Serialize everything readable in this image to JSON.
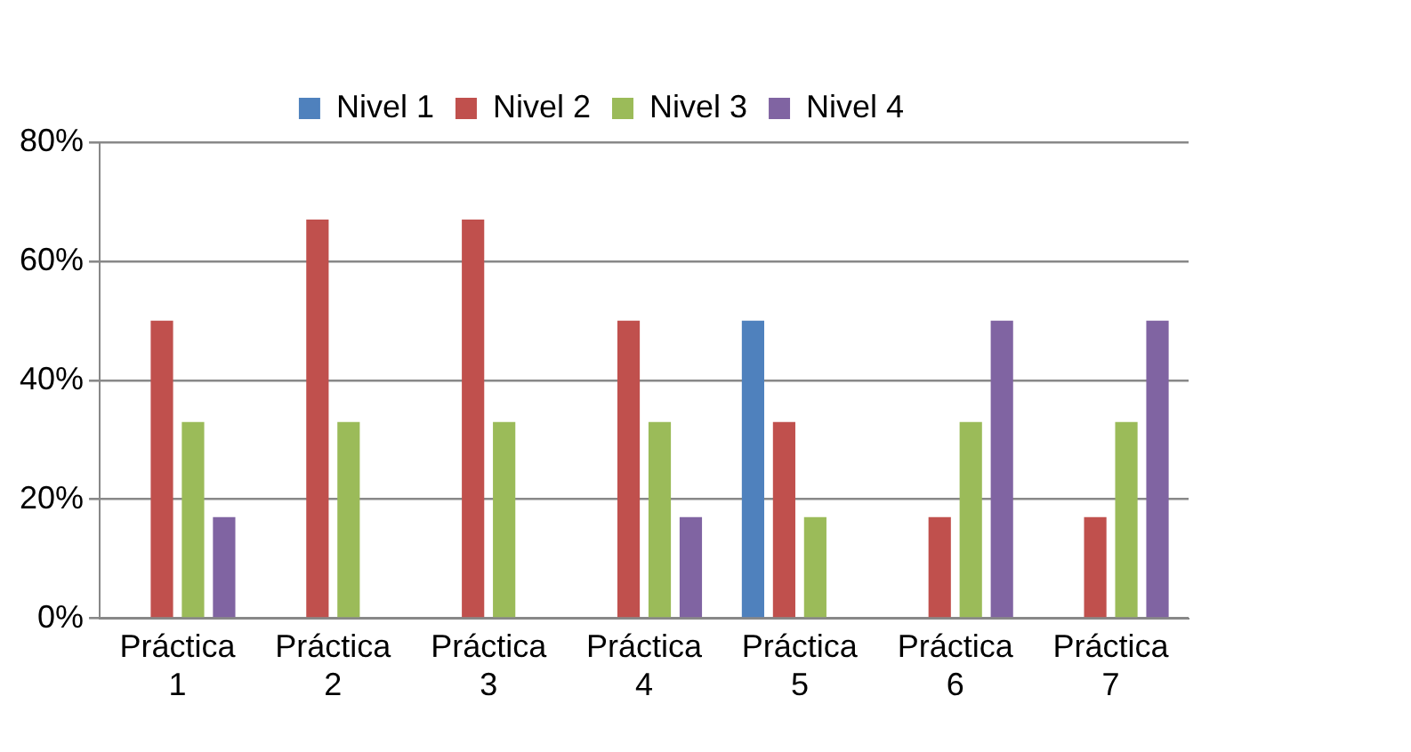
{
  "chart_data": {
    "type": "bar",
    "categories": [
      "Práctica 1",
      "Práctica 2",
      "Práctica 3",
      "Práctica 4",
      "Práctica 5",
      "Práctica 6",
      "Práctica 7"
    ],
    "series": [
      {
        "name": "Nivel 1",
        "color": "#4f81bd",
        "values": [
          0,
          0,
          0,
          0,
          50,
          0,
          0
        ]
      },
      {
        "name": "Nivel 2",
        "color": "#c0504d",
        "values": [
          50,
          67,
          67,
          50,
          33,
          17,
          17
        ]
      },
      {
        "name": "Nivel 3",
        "color": "#9bbb59",
        "values": [
          33,
          33,
          33,
          33,
          17,
          33,
          33
        ]
      },
      {
        "name": "Nivel 4",
        "color": "#8064a2",
        "values": [
          17,
          0,
          0,
          17,
          0,
          50,
          50
        ]
      }
    ],
    "ylim": [
      0,
      80
    ],
    "yticks": [
      {
        "value": 0,
        "label": "0%"
      },
      {
        "value": 20,
        "label": "20%"
      },
      {
        "value": 40,
        "label": "40%"
      },
      {
        "value": 60,
        "label": "60%"
      },
      {
        "value": 80,
        "label": "80%"
      }
    ],
    "grid": "y",
    "legend": "top"
  }
}
